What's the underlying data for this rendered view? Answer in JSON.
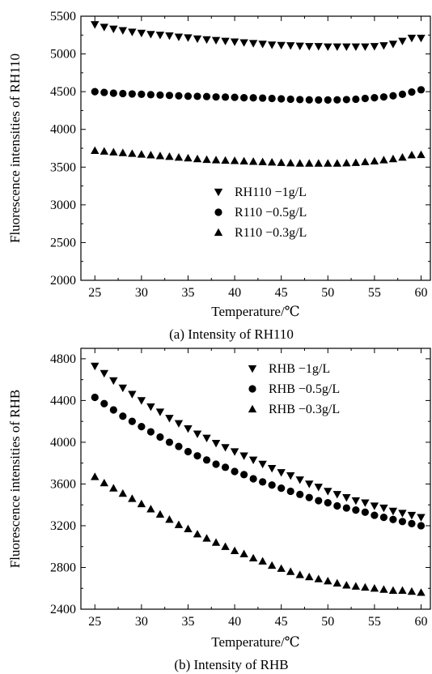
{
  "chart_data": [
    {
      "type": "scatter",
      "title": "",
      "caption": "(a) Intensity of RH110",
      "xlabel": "Temperature/℃",
      "ylabel": "Fluorescence intensities of RH110",
      "xlim": [
        23.5,
        61
      ],
      "ylim": [
        2000,
        5500
      ],
      "xticks": [
        25,
        30,
        35,
        40,
        45,
        50,
        55,
        60
      ],
      "yticks": [
        2000,
        2500,
        3000,
        3500,
        4000,
        4500,
        5000,
        5500
      ],
      "grid": false,
      "legend": "center",
      "x": [
        25,
        26,
        27,
        28,
        29,
        30,
        31,
        32,
        33,
        34,
        35,
        36,
        37,
        38,
        39,
        40,
        41,
        42,
        43,
        44,
        45,
        46,
        47,
        48,
        49,
        50,
        51,
        52,
        53,
        54,
        55,
        56,
        57,
        58,
        59,
        60
      ],
      "series": [
        {
          "name": "RH110 −1g/L",
          "marker": "triangle-down",
          "values": [
            5390,
            5355,
            5330,
            5310,
            5290,
            5275,
            5260,
            5250,
            5240,
            5225,
            5215,
            5200,
            5190,
            5180,
            5170,
            5160,
            5150,
            5140,
            5130,
            5120,
            5115,
            5110,
            5105,
            5100,
            5100,
            5095,
            5095,
            5095,
            5095,
            5095,
            5100,
            5110,
            5130,
            5170,
            5210,
            5210
          ]
        },
        {
          "name": "R110 −0.5g/L",
          "marker": "circle",
          "values": [
            4500,
            4490,
            4480,
            4475,
            4470,
            4465,
            4460,
            4455,
            4450,
            4445,
            4440,
            4438,
            4435,
            4430,
            4428,
            4425,
            4420,
            4418,
            4415,
            4410,
            4405,
            4400,
            4395,
            4392,
            4390,
            4390,
            4392,
            4395,
            4400,
            4410,
            4420,
            4430,
            4445,
            4465,
            4495,
            4525
          ]
        },
        {
          "name": "R110 −0.3g/L",
          "marker": "triangle-up",
          "values": [
            3720,
            3710,
            3700,
            3690,
            3680,
            3670,
            3660,
            3650,
            3640,
            3630,
            3620,
            3610,
            3600,
            3595,
            3590,
            3585,
            3580,
            3575,
            3570,
            3565,
            3560,
            3555,
            3550,
            3550,
            3550,
            3550,
            3550,
            3555,
            3560,
            3570,
            3580,
            3595,
            3610,
            3630,
            3660,
            3665
          ]
        }
      ]
    },
    {
      "type": "scatter",
      "title": "",
      "caption": "(b) Intensity of RHB",
      "xlabel": "Temperature/℃",
      "ylabel": "Fluorescence intensities of RHB",
      "xlim": [
        23.5,
        61
      ],
      "ylim": [
        2400,
        4900
      ],
      "xticks": [
        25,
        30,
        35,
        40,
        45,
        50,
        55,
        60
      ],
      "yticks": [
        2400,
        2800,
        3200,
        3600,
        4000,
        4400,
        4800
      ],
      "grid": false,
      "legend": "top-right",
      "x": [
        25,
        26,
        27,
        28,
        29,
        30,
        31,
        32,
        33,
        34,
        35,
        36,
        37,
        38,
        39,
        40,
        41,
        42,
        43,
        44,
        45,
        46,
        47,
        48,
        49,
        50,
        51,
        52,
        53,
        54,
        55,
        56,
        57,
        58,
        59,
        60
      ],
      "series": [
        {
          "name": "RHB −1g/L",
          "marker": "triangle-down",
          "values": [
            4730,
            4660,
            4590,
            4520,
            4460,
            4400,
            4340,
            4290,
            4230,
            4180,
            4130,
            4080,
            4040,
            3990,
            3950,
            3910,
            3870,
            3830,
            3790,
            3750,
            3710,
            3680,
            3640,
            3600,
            3570,
            3530,
            3500,
            3470,
            3440,
            3420,
            3390,
            3370,
            3340,
            3320,
            3300,
            3280
          ]
        },
        {
          "name": "RHB −0.5g/L",
          "marker": "circle",
          "values": [
            4430,
            4370,
            4310,
            4250,
            4200,
            4150,
            4100,
            4050,
            4000,
            3960,
            3910,
            3870,
            3830,
            3790,
            3760,
            3720,
            3690,
            3650,
            3620,
            3590,
            3560,
            3530,
            3500,
            3470,
            3440,
            3420,
            3390,
            3370,
            3350,
            3330,
            3300,
            3280,
            3260,
            3240,
            3220,
            3200
          ]
        },
        {
          "name": "RHB −0.3g/L",
          "marker": "triangle-up",
          "values": [
            3670,
            3610,
            3560,
            3510,
            3460,
            3410,
            3360,
            3310,
            3260,
            3210,
            3170,
            3120,
            3080,
            3040,
            3000,
            2960,
            2930,
            2890,
            2860,
            2820,
            2790,
            2760,
            2730,
            2710,
            2690,
            2670,
            2650,
            2630,
            2620,
            2610,
            2600,
            2590,
            2580,
            2580,
            2570,
            2560
          ]
        }
      ]
    }
  ]
}
